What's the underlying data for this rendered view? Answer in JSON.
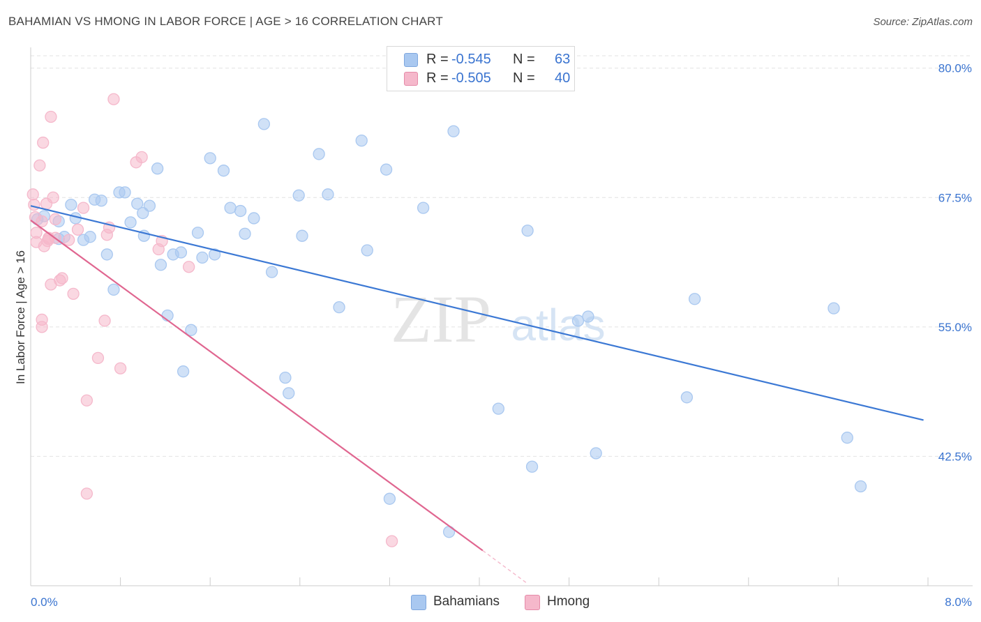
{
  "header": {
    "title": "BAHAMIAN VS HMONG IN LABOR FORCE | AGE > 16 CORRELATION CHART",
    "source": "Source: ZipAtlas.com"
  },
  "watermark": {
    "zip": "ZIP",
    "atlas": "atlas"
  },
  "legend": {
    "rows": [
      {
        "r_label": "R = ",
        "r_value": "-0.545",
        "n_label": "N = ",
        "n_value": "63",
        "color": "#a9c8f0"
      },
      {
        "r_label": "R = ",
        "r_value": "-0.505",
        "n_label": "N = ",
        "n_value": "40",
        "color": "#f5b8cb"
      }
    ]
  },
  "bottom_legend": [
    {
      "label": "Bahamians",
      "color": "#a9c8f0"
    },
    {
      "label": "Hmong",
      "color": "#f5b8cb"
    }
  ],
  "chart_data": {
    "type": "scatter",
    "title": "BAHAMIAN VS HMONG IN LABOR FORCE | AGE > 16 CORRELATION CHART",
    "xlabel": "",
    "ylabel": "In Labor Force | Age > 16",
    "xlim": [
      0,
      8
    ],
    "ylim": [
      30,
      82
    ],
    "x_tick_labels": [
      "0.0%",
      "8.0%"
    ],
    "y_ticks": [
      42.5,
      55.0,
      67.5,
      80.0
    ],
    "y_tick_labels": [
      "42.5%",
      "55.0%",
      "67.5%",
      "80.0%"
    ],
    "grid": true,
    "series": [
      {
        "name": "Bahamians",
        "color": "#3b78d4",
        "fill": "#a9c8f0",
        "trend": {
          "x": [
            0.0,
            7.96
          ],
          "y": [
            66.7,
            46.0
          ],
          "dashed_to": null
        },
        "points": [
          [
            0.06,
            65.4
          ],
          [
            0.12,
            65.7
          ],
          [
            0.25,
            65.2
          ],
          [
            0.25,
            63.5
          ],
          [
            0.3,
            63.7
          ],
          [
            0.36,
            66.8
          ],
          [
            0.4,
            65.5
          ],
          [
            0.47,
            63.4
          ],
          [
            0.53,
            63.7
          ],
          [
            0.57,
            67.3
          ],
          [
            0.63,
            67.2
          ],
          [
            0.68,
            62.0
          ],
          [
            0.74,
            58.6
          ],
          [
            0.79,
            68.0
          ],
          [
            0.84,
            68.0
          ],
          [
            0.89,
            65.1
          ],
          [
            0.95,
            66.9
          ],
          [
            1.01,
            63.8
          ],
          [
            1.06,
            66.7
          ],
          [
            1.13,
            70.3
          ],
          [
            1.16,
            61.0
          ],
          [
            1.22,
            56.1
          ],
          [
            1.27,
            62.0
          ],
          [
            1.34,
            62.2
          ],
          [
            1.36,
            50.7
          ],
          [
            1.43,
            54.7
          ],
          [
            1.49,
            64.1
          ],
          [
            1.53,
            61.7
          ],
          [
            1.6,
            71.3
          ],
          [
            1.64,
            62.0
          ],
          [
            1.72,
            70.1
          ],
          [
            1.78,
            66.5
          ],
          [
            1.87,
            66.2
          ],
          [
            1.91,
            64.0
          ],
          [
            1.99,
            65.5
          ],
          [
            2.08,
            74.6
          ],
          [
            2.15,
            60.3
          ],
          [
            2.27,
            50.1
          ],
          [
            2.39,
            67.7
          ],
          [
            2.42,
            63.8
          ],
          [
            2.57,
            71.7
          ],
          [
            2.65,
            67.8
          ],
          [
            2.75,
            56.9
          ],
          [
            2.95,
            73.0
          ],
          [
            3.0,
            62.4
          ],
          [
            3.2,
            38.4
          ],
          [
            3.17,
            70.2
          ],
          [
            3.5,
            66.5
          ],
          [
            3.73,
            35.2
          ],
          [
            3.77,
            73.9
          ],
          [
            4.17,
            47.1
          ],
          [
            4.43,
            64.3
          ],
          [
            4.47,
            41.5
          ],
          [
            4.88,
            55.6
          ],
          [
            4.97,
            56.0
          ],
          [
            5.04,
            42.8
          ],
          [
            5.85,
            48.2
          ],
          [
            5.92,
            57.7
          ],
          [
            7.16,
            56.8
          ],
          [
            7.28,
            44.3
          ],
          [
            7.4,
            39.6
          ],
          [
            1.0,
            66.0
          ],
          [
            2.3,
            48.6
          ]
        ]
      },
      {
        "name": "Hmong",
        "color": "#e06690",
        "fill": "#f5b8cb",
        "trend": {
          "x": [
            0.0,
            4.03
          ],
          "y": [
            65.3,
            33.4
          ],
          "dashed_to": [
            4.43,
            30.2
          ]
        },
        "points": [
          [
            0.02,
            67.8
          ],
          [
            0.03,
            66.8
          ],
          [
            0.04,
            65.6
          ],
          [
            0.05,
            64.1
          ],
          [
            0.05,
            63.2
          ],
          [
            0.08,
            70.6
          ],
          [
            0.1,
            65.2
          ],
          [
            0.1,
            55.7
          ],
          [
            0.1,
            55.0
          ],
          [
            0.11,
            72.8
          ],
          [
            0.12,
            62.8
          ],
          [
            0.14,
            66.9
          ],
          [
            0.15,
            63.3
          ],
          [
            0.16,
            63.6
          ],
          [
            0.16,
            63.5
          ],
          [
            0.18,
            75.3
          ],
          [
            0.18,
            59.1
          ],
          [
            0.2,
            67.5
          ],
          [
            0.22,
            63.6
          ],
          [
            0.22,
            65.4
          ],
          [
            0.26,
            59.5
          ],
          [
            0.28,
            59.7
          ],
          [
            0.34,
            63.4
          ],
          [
            0.38,
            58.2
          ],
          [
            0.47,
            66.5
          ],
          [
            0.5,
            47.9
          ],
          [
            0.5,
            38.9
          ],
          [
            0.6,
            52.0
          ],
          [
            0.66,
            55.6
          ],
          [
            0.68,
            63.9
          ],
          [
            0.7,
            64.6
          ],
          [
            0.74,
            77.0
          ],
          [
            0.8,
            51.0
          ],
          [
            0.94,
            70.9
          ],
          [
            0.99,
            71.4
          ],
          [
            1.14,
            62.5
          ],
          [
            1.17,
            63.3
          ],
          [
            1.41,
            60.8
          ],
          [
            3.22,
            34.3
          ],
          [
            0.42,
            64.4
          ]
        ]
      }
    ]
  }
}
